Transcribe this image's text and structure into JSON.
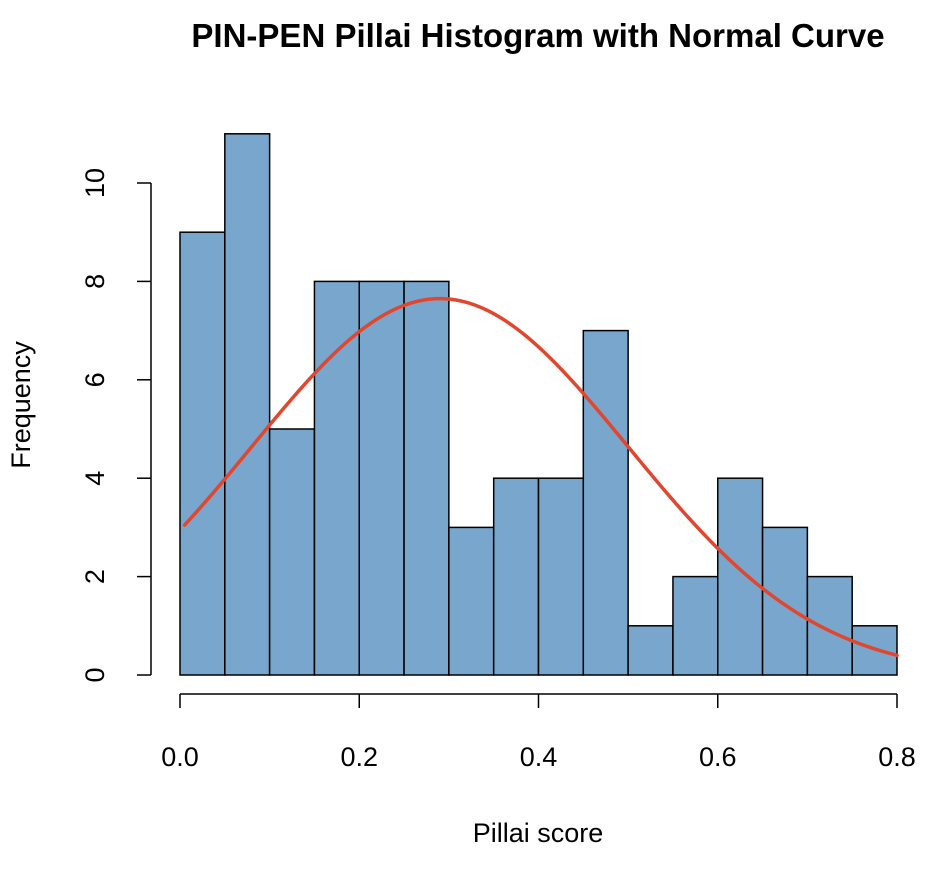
{
  "chart_data": {
    "type": "bar",
    "title": "PIN-PEN Pillai Histogram with Normal Curve",
    "xlabel": "Pillai score",
    "ylabel": "Frequency",
    "bin_edges": [
      0.0,
      0.05,
      0.1,
      0.15,
      0.2,
      0.25,
      0.3,
      0.35,
      0.4,
      0.45,
      0.5,
      0.55,
      0.6,
      0.65,
      0.7,
      0.75,
      0.8
    ],
    "counts": [
      9,
      11,
      5,
      8,
      8,
      8,
      3,
      4,
      4,
      7,
      1,
      2,
      4,
      3,
      2,
      1
    ],
    "xlim": [
      0.0,
      0.8
    ],
    "ylim": [
      0,
      11
    ],
    "x_ticks": [
      0.0,
      0.2,
      0.4,
      0.6,
      0.8
    ],
    "x_tick_labels": [
      "0.0",
      "0.2",
      "0.4",
      "0.6",
      "0.8"
    ],
    "y_ticks": [
      0,
      2,
      4,
      6,
      8,
      10
    ],
    "y_tick_labels": [
      "0",
      "2",
      "4",
      "6",
      "8",
      "10"
    ],
    "normal_curve": {
      "mean": 0.29,
      "peak": 7.65,
      "sd": 0.21,
      "x_range": [
        0.005,
        0.8
      ]
    },
    "colors": {
      "bar_fill": "#79a6cc",
      "bar_stroke": "#000000",
      "curve": "#e0472e"
    },
    "grid": false,
    "legend": "none"
  }
}
